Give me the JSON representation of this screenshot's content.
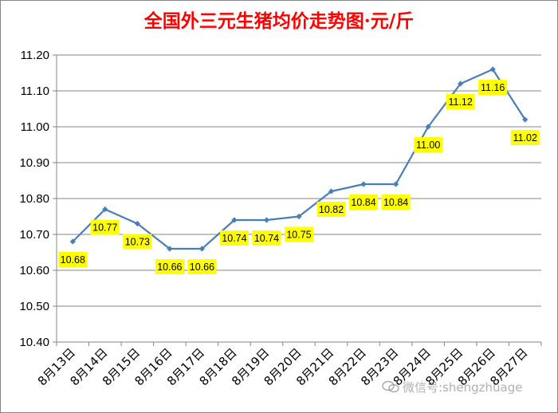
{
  "chart_data": {
    "type": "line",
    "title": "全国外三元生猪均价走势图·元/斤",
    "categories": [
      "8月13日",
      "8月14日",
      "8月15日",
      "8月16日",
      "8月17日",
      "8月18日",
      "8月19日",
      "8月20日",
      "8月21日",
      "8月22日",
      "8月23日",
      "8月24日",
      "8月25日",
      "8月26日",
      "8月27日"
    ],
    "values": [
      10.68,
      10.77,
      10.73,
      10.66,
      10.66,
      10.74,
      10.74,
      10.75,
      10.82,
      10.84,
      10.84,
      11.0,
      11.12,
      11.16,
      11.02
    ],
    "value_labels": [
      "10.68",
      "10.77",
      "10.73",
      "10.66",
      "10.66",
      "10.74",
      "10.74",
      "10.75",
      "10.82",
      "10.84",
      "10.84",
      "11.00",
      "11.12",
      "11.16",
      "11.02"
    ],
    "yticks": [
      "10.40",
      "10.50",
      "10.60",
      "10.70",
      "10.80",
      "10.90",
      "11.00",
      "11.10",
      "11.20"
    ],
    "ylim": [
      10.4,
      11.2
    ],
    "xlabel": "",
    "ylabel": "",
    "grid": true,
    "line_color": "#4a7ebb",
    "label_bg_color": "#ffff00",
    "title_color": "#ff0000"
  },
  "watermark": {
    "text": "微信号:shengzhuage",
    "icon": "wechat-icon"
  }
}
